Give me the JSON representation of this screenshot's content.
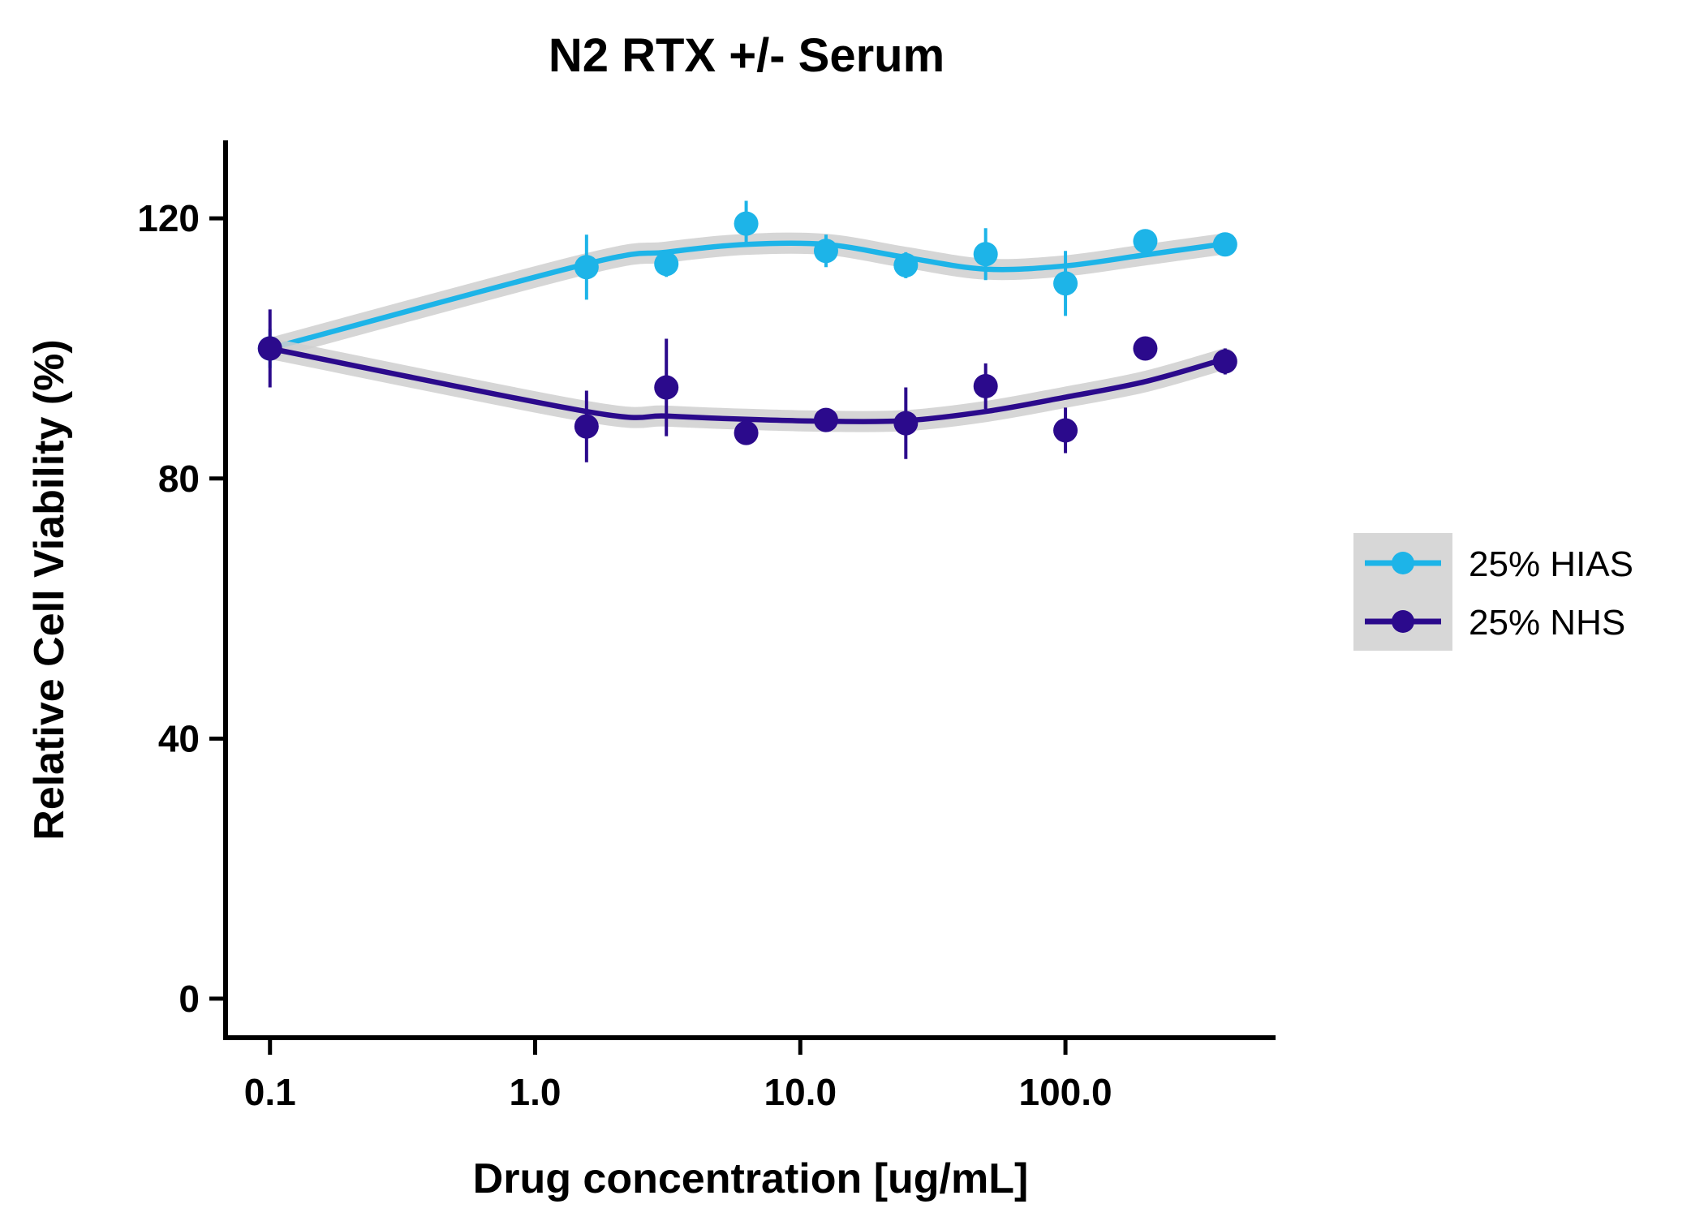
{
  "chart_data": {
    "type": "scatter",
    "title": "N2 RTX +/- Serum",
    "xlabel": "Drug concentration [ug/mL]",
    "ylabel": "Relative Cell Viability (%)",
    "x_scale": "log",
    "xlim": [
      0.068,
      620
    ],
    "ylim": [
      -6,
      132
    ],
    "x_ticks": [
      0.1,
      1,
      10,
      100
    ],
    "x_tick_labels": [
      "0.1",
      "1.0",
      "10.0",
      "100.0"
    ],
    "y_ticks": [
      0,
      40,
      80,
      120
    ],
    "y_tick_labels": [
      "0",
      "40",
      "80",
      "120"
    ],
    "grid": false,
    "legend": "right",
    "series": [
      {
        "name": "25% HIAS",
        "color": "#1db4e8",
        "x": [
          0.1,
          1.5625,
          3.125,
          6.25,
          12.5,
          25,
          50,
          100,
          200,
          400
        ],
        "y": [
          100,
          112.5,
          113,
          119.2,
          115,
          112.8,
          114.5,
          110,
          116.5,
          116
        ],
        "err": [
          3,
          5,
          2,
          3.5,
          2.5,
          2,
          4,
          5,
          1.5,
          1.5
        ],
        "fit_y": [
          100,
          113,
          114.8,
          116,
          116,
          114,
          112.2,
          112.7,
          114.4,
          116.1
        ]
      },
      {
        "name": "25% NHS",
        "color": "#2b0a8c",
        "x": [
          0.1,
          1.5625,
          3.125,
          6.25,
          12.5,
          25,
          50,
          100,
          200,
          400
        ],
        "y": [
          100,
          88,
          94,
          87,
          89,
          88.5,
          94.2,
          87.4,
          100,
          98
        ],
        "err": [
          6,
          5.5,
          7.5,
          1.5,
          1.5,
          5.5,
          3.5,
          3.5,
          1,
          2
        ],
        "fit_y": [
          100,
          90.3,
          89.6,
          89.1,
          88.8,
          88.9,
          90.3,
          92.5,
          94.9,
          98.4
        ]
      }
    ]
  }
}
